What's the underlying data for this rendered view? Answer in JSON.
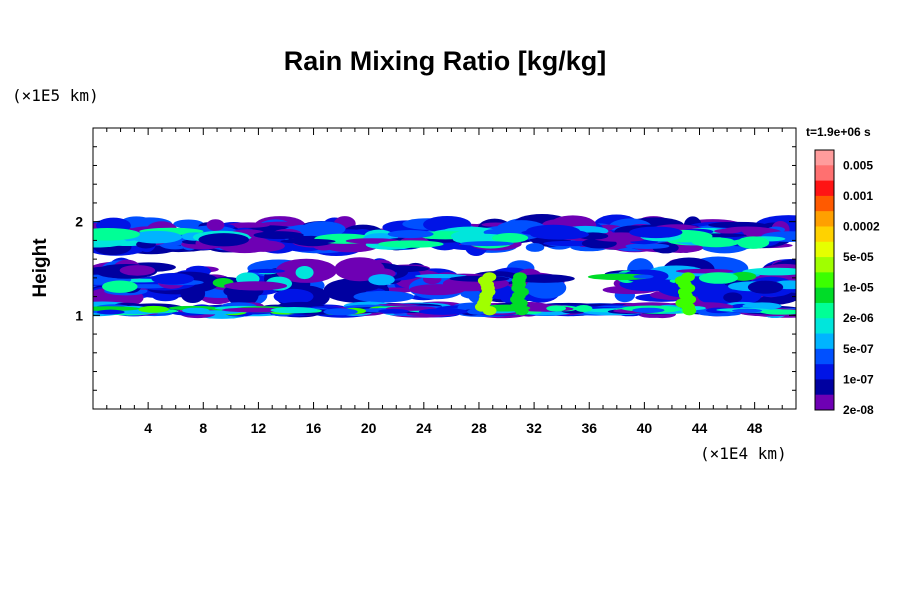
{
  "chart_data": {
    "type": "heatmap",
    "title": "Rain Mixing Ratio [kg/kg]",
    "ylabel": "Height",
    "y_scale_label": "(×1E5 km)",
    "x_scale_label": "(×1E4 km)",
    "time_label": "t=1.9e+06 s",
    "xlim": [
      0,
      51
    ],
    "ylim": [
      0,
      3
    ],
    "x_ticks": [
      "4",
      "8",
      "12",
      "16",
      "20",
      "24",
      "28",
      "32",
      "36",
      "40",
      "44",
      "48"
    ],
    "x_tick_values": [
      4,
      8,
      12,
      16,
      20,
      24,
      28,
      32,
      36,
      40,
      44,
      48
    ],
    "y_ticks": [
      "1",
      "2"
    ],
    "y_tick_values": [
      1,
      2
    ],
    "colorbar": {
      "levels": [
        "0.005",
        "0.001",
        "0.0002",
        "5e-05",
        "1e-05",
        "2e-06",
        "5e-07",
        "1e-07",
        "2e-08"
      ],
      "colors": [
        "#ff9c9c",
        "#ff7070",
        "#ff1414",
        "#ff5a00",
        "#ffa000",
        "#ffd200",
        "#e6ff00",
        "#a0ff00",
        "#3cff00",
        "#00dc28",
        "#00ff96",
        "#00e6dc",
        "#00b4ff",
        "#0050ff",
        "#0014e6",
        "#0000a0",
        "#6e00b4"
      ]
    },
    "layers": [
      {
        "name": "upper",
        "y_range": [
          1.7,
          2.0
        ]
      },
      {
        "name": "middle",
        "y_range": [
          1.15,
          1.55
        ]
      },
      {
        "name": "lower",
        "y_range": [
          1.0,
          1.12
        ]
      }
    ]
  }
}
